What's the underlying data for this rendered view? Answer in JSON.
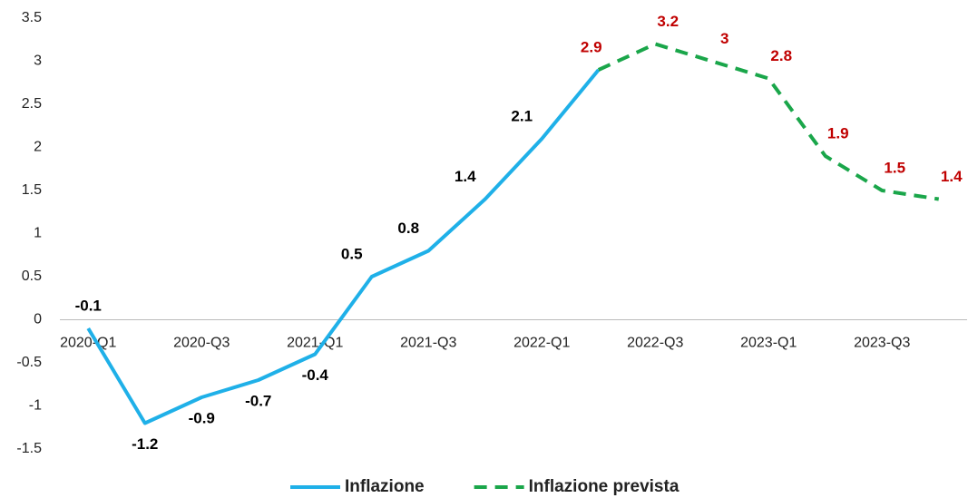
{
  "chart_data": {
    "type": "line",
    "categories": [
      "2020-Q1",
      null,
      "2020-Q3",
      null,
      "2021-Q1",
      null,
      "2021-Q3",
      null,
      "2022-Q1",
      null,
      "2022-Q3",
      null,
      "2023-Q1",
      null,
      "2023-Q3",
      null
    ],
    "series": [
      {
        "name": "Inflazione",
        "color": "#1fb0e8",
        "style": "solid",
        "label_color": "#000000",
        "values": [
          -0.1,
          -1.2,
          -0.9,
          -0.7,
          -0.4,
          0.5,
          0.8,
          1.4,
          2.1,
          2.9,
          null,
          null,
          null,
          null,
          null,
          null
        ]
      },
      {
        "name": "Inflazione prevista",
        "color": "#1aa64a",
        "style": "dashed",
        "label_color": "#c00000",
        "values": [
          null,
          null,
          null,
          null,
          null,
          null,
          null,
          null,
          null,
          2.9,
          3.2,
          3,
          2.8,
          1.9,
          1.5,
          1.4
        ]
      }
    ],
    "ylim": [
      -1.5,
      3.5
    ],
    "yticks": [
      -1.5,
      -1,
      -0.5,
      0,
      0.5,
      1,
      1.5,
      2,
      2.5,
      3,
      3.5
    ],
    "grid": false,
    "legend": "bottom"
  }
}
